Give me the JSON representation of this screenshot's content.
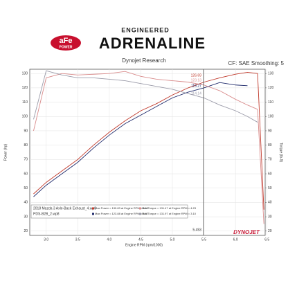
{
  "brand": {
    "logo": "aFe",
    "logo_sub": "POWER",
    "tagline": "ENGINEERED",
    "name": "ADRENALINE",
    "footer_logo": "DYNOJET"
  },
  "chart_data": {
    "type": "line",
    "title": "Dynojet Research",
    "subtitle": "CF: SAE Smoothing: 5",
    "x_label": "Engine RPM (rpm/1000)",
    "y_label": "Power (hp)",
    "y2_label": "Torque (lb-ft)",
    "x": [
      2.8,
      3.0,
      3.25,
      3.5,
      3.75,
      4.0,
      4.25,
      4.5,
      4.75,
      5.0,
      5.25,
      5.5,
      5.75,
      6.0,
      6.19,
      6.35,
      6.45
    ],
    "series": [
      {
        "name": "2018 Mazda 3 Axle-Back Exhaust_4.wp8",
        "color": "#c0392b",
        "values": [
          46,
          54,
          62,
          70,
          80,
          89,
          97,
          104,
          109,
          115,
          120,
          124,
          127,
          129.5,
          130.83,
          130,
          35
        ]
      },
      {
        "name": "PDS-B2B_2.wp8",
        "color": "#1f2a6b",
        "values": [
          44,
          52,
          60,
          68,
          78,
          87,
          95,
          101,
          107,
          113,
          117,
          120,
          123.7,
          122,
          121.5,
          null,
          null
        ]
      },
      {
        "color": "#d98b8b",
        "axis": "y2",
        "values": [
          90,
          127,
          130,
          129,
          129.5,
          130,
          131.47,
          128,
          126,
          125,
          124,
          122,
          118,
          112,
          108,
          105,
          25
        ]
      },
      {
        "color": "#9a9aa8",
        "axis": "y2",
        "values": [
          98,
          131.97,
          129,
          127,
          127,
          126,
          125,
          123,
          121,
          119,
          116,
          113,
          108,
          104,
          100,
          96,
          null
        ]
      }
    ],
    "legend_stats": [
      [
        "Max Power = 130.83 at Engine RPM = 6.19",
        "Max Torque = 131.47 at Engine RPM = 4.23"
      ],
      [
        "Max Power = 123.88 at Engine RPM = 5.67",
        "Max Torque = 131.97 at Engine RPM = 3.10"
      ]
    ],
    "cursor_x": 5.493,
    "cursor_values": [
      126.69,
      119.27,
      123.13,
      114.14
    ],
    "xlim": [
      2.74,
      6.47
    ],
    "ylim": [
      17,
      133
    ],
    "y2lim": [
      17,
      133
    ],
    "xticks": [
      {
        "value": 3,
        "label": "3.0"
      },
      3.5,
      {
        "value": 4,
        "label": "4.0"
      },
      4.5,
      {
        "value": 5,
        "label": "5.0"
      },
      5.5,
      {
        "value": 6,
        "label": "6.0"
      },
      6.5
    ],
    "yticks": [
      20,
      30,
      40,
      50,
      60,
      70,
      80,
      90,
      100,
      110,
      120,
      130
    ],
    "y2ticks": [
      20,
      30,
      40,
      50,
      60,
      70,
      80,
      90,
      100,
      110,
      120,
      130
    ],
    "grid": true
  }
}
